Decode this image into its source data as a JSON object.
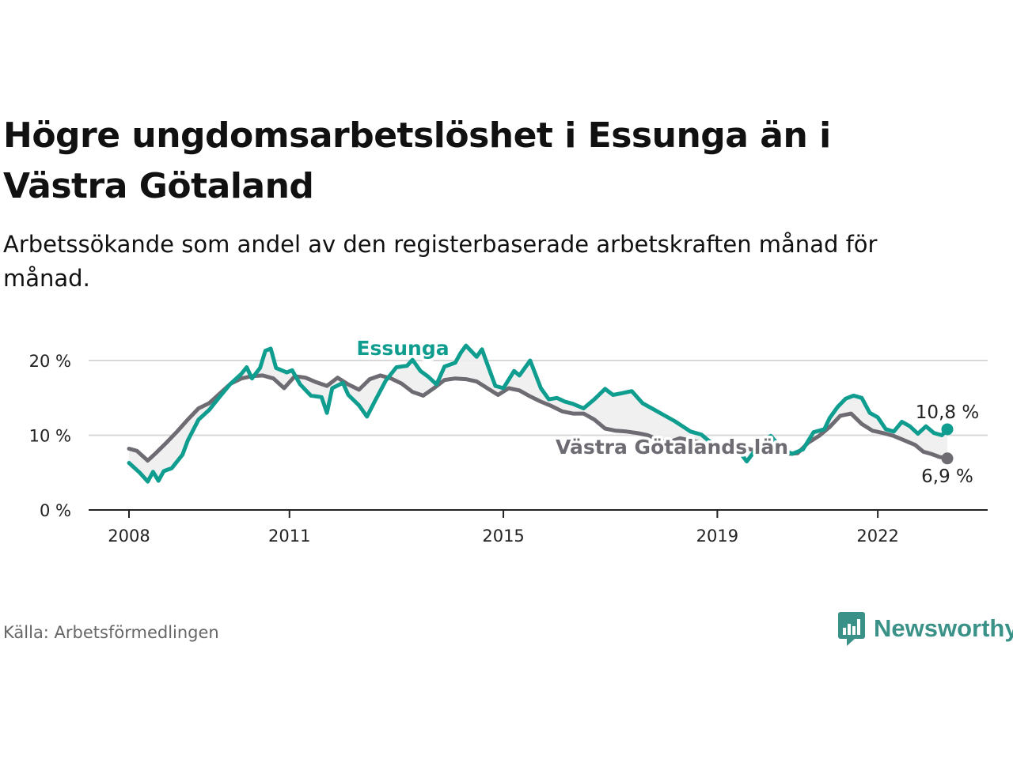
{
  "title": "Högre ungdomsarbetslöshet i Essunga än i Västra Götaland",
  "subtitle": "Arbetssökande som andel av den registerbaserade arbetskraften månad för månad.",
  "source": "Källa: Arbetsförmedlingen",
  "brand": "Newsworthy",
  "colors": {
    "essunga": "#0f9d8f",
    "region": "#6e6b73",
    "grid": "#d8d8d8",
    "axis": "#222222",
    "fill": "#eeeeee"
  },
  "chart_data": {
    "type": "line",
    "unit": "%",
    "ylim": [
      0,
      22
    ],
    "yticks": [
      {
        "value": 0,
        "label": "0 %"
      },
      {
        "value": 10,
        "label": "10 %"
      },
      {
        "value": 20,
        "label": "20 %"
      }
    ],
    "xlim": [
      2007.75,
      2023.5
    ],
    "xticks": [
      {
        "value": 2008,
        "label": "2008"
      },
      {
        "value": 2011,
        "label": "2011"
      },
      {
        "value": 2015,
        "label": "2015"
      },
      {
        "value": 2019,
        "label": "2019"
      },
      {
        "value": 2022,
        "label": "2022"
      }
    ],
    "series": [
      {
        "name": "Essunga",
        "end_label": "10,8 %",
        "points": [
          [
            2008.0,
            6.3
          ],
          [
            2008.2,
            5.0
          ],
          [
            2008.35,
            3.8
          ],
          [
            2008.45,
            5.1
          ],
          [
            2008.55,
            3.9
          ],
          [
            2008.65,
            5.2
          ],
          [
            2008.8,
            5.6
          ],
          [
            2009.0,
            7.4
          ],
          [
            2009.1,
            9.3
          ],
          [
            2009.3,
            12.1
          ],
          [
            2009.5,
            13.4
          ],
          [
            2009.7,
            15.2
          ],
          [
            2009.9,
            16.9
          ],
          [
            2010.1,
            18.2
          ],
          [
            2010.2,
            19.1
          ],
          [
            2010.3,
            17.6
          ],
          [
            2010.45,
            19.0
          ],
          [
            2010.55,
            21.3
          ],
          [
            2010.65,
            21.6
          ],
          [
            2010.75,
            19.0
          ],
          [
            2010.95,
            18.4
          ],
          [
            2011.05,
            18.7
          ],
          [
            2011.2,
            16.8
          ],
          [
            2011.4,
            15.3
          ],
          [
            2011.6,
            15.1
          ],
          [
            2011.7,
            13.0
          ],
          [
            2011.8,
            16.3
          ],
          [
            2012.0,
            17.0
          ],
          [
            2012.1,
            15.4
          ],
          [
            2012.3,
            14.0
          ],
          [
            2012.45,
            12.5
          ],
          [
            2012.6,
            14.6
          ],
          [
            2012.8,
            17.3
          ],
          [
            2013.0,
            19.1
          ],
          [
            2013.2,
            19.3
          ],
          [
            2013.3,
            20.1
          ],
          [
            2013.45,
            18.6
          ],
          [
            2013.6,
            17.8
          ],
          [
            2013.75,
            16.8
          ],
          [
            2013.9,
            19.2
          ],
          [
            2014.1,
            19.7
          ],
          [
            2014.2,
            21.0
          ],
          [
            2014.3,
            22.0
          ],
          [
            2014.5,
            20.5
          ],
          [
            2014.6,
            21.5
          ],
          [
            2014.7,
            19.5
          ],
          [
            2014.85,
            16.6
          ],
          [
            2015.0,
            16.3
          ],
          [
            2015.2,
            18.6
          ],
          [
            2015.3,
            18.0
          ],
          [
            2015.5,
            20.0
          ],
          [
            2015.7,
            16.3
          ],
          [
            2015.85,
            14.8
          ],
          [
            2016.0,
            15.0
          ],
          [
            2016.15,
            14.5
          ],
          [
            2016.3,
            14.2
          ],
          [
            2016.5,
            13.6
          ],
          [
            2016.7,
            14.8
          ],
          [
            2016.9,
            16.2
          ],
          [
            2017.05,
            15.4
          ],
          [
            2017.2,
            15.6
          ],
          [
            2017.4,
            15.9
          ],
          [
            2017.6,
            14.3
          ],
          [
            2017.8,
            13.5
          ],
          [
            2018.0,
            12.7
          ],
          [
            2018.2,
            11.9
          ],
          [
            2018.35,
            11.2
          ],
          [
            2018.5,
            10.5
          ],
          [
            2018.7,
            10.1
          ],
          [
            2018.85,
            9.2
          ],
          [
            2019.0,
            8.5
          ],
          [
            2019.2,
            7.8
          ],
          [
            2019.4,
            7.9
          ],
          [
            2019.55,
            6.5
          ],
          [
            2019.7,
            7.9
          ],
          [
            2019.85,
            9.2
          ],
          [
            2020.0,
            9.9
          ],
          [
            2020.2,
            8.2
          ],
          [
            2020.4,
            7.5
          ],
          [
            2020.6,
            8.1
          ],
          [
            2020.8,
            10.4
          ],
          [
            2021.0,
            10.8
          ],
          [
            2021.1,
            12.3
          ],
          [
            2021.25,
            13.8
          ],
          [
            2021.4,
            14.9
          ],
          [
            2021.55,
            15.3
          ],
          [
            2021.7,
            15.0
          ],
          [
            2021.85,
            13.0
          ],
          [
            2022.0,
            12.4
          ],
          [
            2022.15,
            10.8
          ],
          [
            2022.3,
            10.5
          ],
          [
            2022.45,
            11.8
          ],
          [
            2022.6,
            11.2
          ],
          [
            2022.75,
            10.2
          ],
          [
            2022.9,
            11.2
          ],
          [
            2023.05,
            10.3
          ],
          [
            2023.2,
            10.0
          ],
          [
            2023.3,
            10.8
          ]
        ]
      },
      {
        "name": "Västra Götalands län",
        "end_label": "6,9 %",
        "points": [
          [
            2008.0,
            8.2
          ],
          [
            2008.15,
            7.9
          ],
          [
            2008.35,
            6.6
          ],
          [
            2008.5,
            7.6
          ],
          [
            2008.7,
            9.0
          ],
          [
            2008.9,
            10.5
          ],
          [
            2009.1,
            12.1
          ],
          [
            2009.3,
            13.6
          ],
          [
            2009.5,
            14.3
          ],
          [
            2009.7,
            15.6
          ],
          [
            2009.9,
            16.9
          ],
          [
            2010.1,
            17.6
          ],
          [
            2010.3,
            17.9
          ],
          [
            2010.5,
            18.0
          ],
          [
            2010.7,
            17.6
          ],
          [
            2010.9,
            16.3
          ],
          [
            2011.1,
            17.9
          ],
          [
            2011.3,
            17.7
          ],
          [
            2011.5,
            17.1
          ],
          [
            2011.7,
            16.6
          ],
          [
            2011.9,
            17.7
          ],
          [
            2012.1,
            16.8
          ],
          [
            2012.3,
            16.1
          ],
          [
            2012.5,
            17.5
          ],
          [
            2012.7,
            18.0
          ],
          [
            2012.9,
            17.6
          ],
          [
            2013.1,
            16.9
          ],
          [
            2013.3,
            15.8
          ],
          [
            2013.5,
            15.3
          ],
          [
            2013.7,
            16.3
          ],
          [
            2013.9,
            17.4
          ],
          [
            2014.1,
            17.6
          ],
          [
            2014.3,
            17.5
          ],
          [
            2014.5,
            17.2
          ],
          [
            2014.7,
            16.3
          ],
          [
            2014.9,
            15.4
          ],
          [
            2015.1,
            16.3
          ],
          [
            2015.3,
            16.0
          ],
          [
            2015.5,
            15.2
          ],
          [
            2015.7,
            14.5
          ],
          [
            2015.9,
            13.9
          ],
          [
            2016.1,
            13.2
          ],
          [
            2016.3,
            12.9
          ],
          [
            2016.5,
            12.9
          ],
          [
            2016.7,
            12.1
          ],
          [
            2016.9,
            10.9
          ],
          [
            2017.1,
            10.6
          ],
          [
            2017.3,
            10.5
          ],
          [
            2017.5,
            10.3
          ],
          [
            2017.7,
            10.0
          ],
          [
            2017.9,
            9.4
          ],
          [
            2018.1,
            9.1
          ],
          [
            2018.3,
            9.6
          ],
          [
            2018.5,
            9.3
          ],
          [
            2018.7,
            9.0
          ],
          [
            2018.9,
            8.7
          ],
          [
            2019.1,
            8.4
          ],
          [
            2019.3,
            8.0
          ],
          [
            2019.5,
            8.3
          ],
          [
            2019.7,
            8.0
          ],
          [
            2019.9,
            7.8
          ],
          [
            2020.1,
            7.8
          ],
          [
            2020.3,
            7.5
          ],
          [
            2020.5,
            7.6
          ],
          [
            2020.7,
            9.0
          ],
          [
            2020.9,
            9.9
          ],
          [
            2021.1,
            11.1
          ],
          [
            2021.3,
            12.6
          ],
          [
            2021.5,
            12.9
          ],
          [
            2021.7,
            11.5
          ],
          [
            2021.9,
            10.6
          ],
          [
            2022.1,
            10.3
          ],
          [
            2022.3,
            9.9
          ],
          [
            2022.5,
            9.3
          ],
          [
            2022.7,
            8.7
          ],
          [
            2022.85,
            7.8
          ],
          [
            2023.0,
            7.5
          ],
          [
            2023.15,
            7.1
          ],
          [
            2023.3,
            6.9
          ]
        ]
      }
    ],
    "labels": [
      {
        "series": "Essunga",
        "text": "Essunga"
      },
      {
        "series": "Västra Götalands län",
        "text": "Västra Götalands län"
      }
    ]
  }
}
